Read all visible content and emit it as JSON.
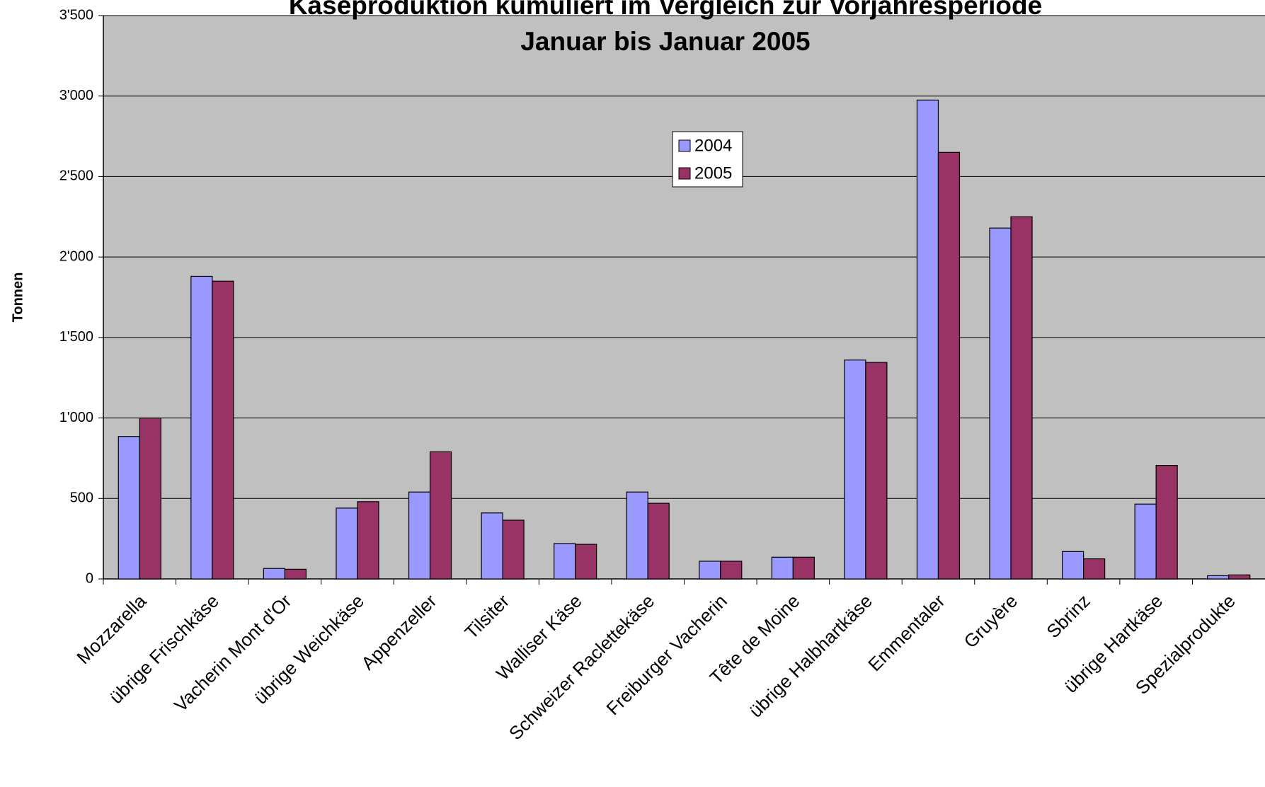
{
  "chart_data": {
    "type": "bar",
    "title": "Käseproduktion kumuliert im Vergleich zur Vorjahresperiode",
    "subtitle": "Januar bis Januar 2005",
    "y_label": "Tonnen",
    "categories": [
      "Mozzarella",
      "übrige Frischkäse",
      "Vacherin Mont d'Or",
      "übrige Weichkäse",
      "Appenzeller",
      "Tilsiter",
      "Walliser Käse",
      "Schweizer Raclettekäse",
      "Freiburger Vacherin",
      "Tête de Moine",
      "übrige Halbhartkäse",
      "Emmentaler",
      "Gruyère",
      "Sbrinz",
      "übrige Hartkäse",
      "Spezialprodukte"
    ],
    "series": [
      {
        "name": "2004",
        "color": "#9999ff",
        "values": [
          885,
          1880,
          65,
          440,
          540,
          410,
          220,
          540,
          110,
          135,
          1360,
          2975,
          2180,
          170,
          465,
          20
        ]
      },
      {
        "name": "2005",
        "color": "#993366",
        "values": [
          1000,
          1850,
          60,
          480,
          790,
          365,
          215,
          470,
          110,
          135,
          1345,
          2650,
          2250,
          125,
          705,
          25
        ]
      }
    ],
    "ylim": [
      0,
      3500
    ],
    "yticks": [
      0,
      500,
      {
        "value": 1000,
        "label": "1'000"
      },
      {
        "value": 1500,
        "label": "1'500"
      },
      {
        "value": 2000,
        "label": "2'000"
      },
      {
        "value": 2500,
        "label": "2'500"
      },
      {
        "value": 3000,
        "label": "3'000"
      },
      {
        "value": 3500,
        "label": "3'500"
      }
    ],
    "grid": true,
    "legend": "top-center"
  }
}
